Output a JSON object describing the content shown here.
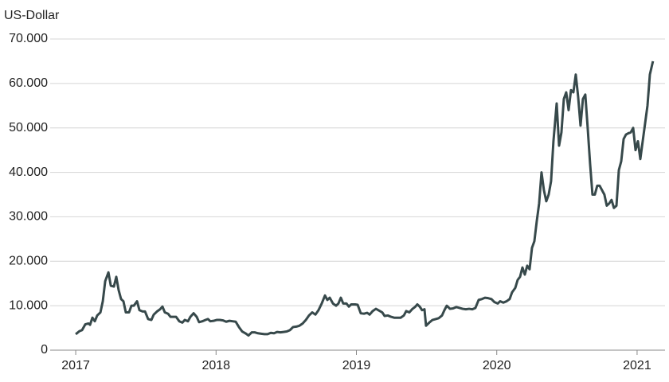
{
  "chart_data": {
    "type": "line",
    "y_axis_label": "US-Dollar",
    "xlim": [
      2016.818,
      2021.199
    ],
    "xticks": [
      2017,
      2018,
      2019,
      2020,
      2021
    ],
    "ylim": [
      0,
      70000
    ],
    "yticks": [
      0,
      {
        "value": 10000,
        "label": "10.000"
      },
      {
        "value": 20000,
        "label": "20.000"
      },
      {
        "value": 30000,
        "label": "30.000"
      },
      {
        "value": 40000,
        "label": "40.000"
      },
      {
        "value": 50000,
        "label": "50.000"
      },
      {
        "value": 60000,
        "label": "60.000"
      },
      {
        "value": 70000,
        "label": "70.000"
      }
    ],
    "grid": true,
    "series": [
      {
        "color": "#37494b",
        "x": [
          2017,
          2017.028,
          2017.045,
          2017.068,
          2017.091,
          2017.102,
          2017.119,
          2017.136,
          2017.153,
          2017.176,
          2017.193,
          2017.21,
          2017.233,
          2017.25,
          2017.272,
          2017.289,
          2017.306,
          2017.323,
          2017.34,
          2017.357,
          2017.38,
          2017.397,
          2017.414,
          2017.437,
          2017.454,
          2017.477,
          2017.494,
          2017.516,
          2017.539,
          2017.556,
          2017.579,
          2017.601,
          2017.618,
          2017.635,
          2017.658,
          2017.675,
          2017.698,
          2017.715,
          2017.738,
          2017.76,
          2017.777,
          2017.8,
          2017.817,
          2017.84,
          2017.862,
          2017.879,
          2017.902,
          2017.925,
          2017.942,
          2017.959,
          2017.982,
          2018.004,
          2018.027,
          2018.05,
          2018.072,
          2018.095,
          2018.118,
          2018.14,
          2018.163,
          2018.186,
          2018.209,
          2018.231,
          2018.254,
          2018.277,
          2018.299,
          2018.322,
          2018.345,
          2018.367,
          2018.39,
          2018.413,
          2018.435,
          2018.458,
          2018.481,
          2018.504,
          2018.526,
          2018.549,
          2018.572,
          2018.594,
          2018.617,
          2018.64,
          2018.662,
          2018.685,
          2018.708,
          2018.73,
          2018.753,
          2018.776,
          2018.793,
          2018.81,
          2018.833,
          2018.855,
          2018.872,
          2018.889,
          2018.906,
          2018.929,
          2018.946,
          2018.963,
          2018.991,
          2019.009,
          2019.031,
          2019.054,
          2019.077,
          2019.094,
          2019.116,
          2019.139,
          2019.162,
          2019.184,
          2019.201,
          2019.224,
          2019.247,
          2019.269,
          2019.292,
          2019.315,
          2019.338,
          2019.355,
          2019.377,
          2019.4,
          2019.417,
          2019.434,
          2019.451,
          2019.468,
          2019.485,
          2019.496,
          2019.519,
          2019.542,
          2019.565,
          2019.587,
          2019.61,
          2019.627,
          2019.644,
          2019.667,
          2019.689,
          2019.712,
          2019.735,
          2019.757,
          2019.78,
          2019.803,
          2019.826,
          2019.848,
          2019.871,
          2019.894,
          2019.916,
          2019.939,
          2019.962,
          2019.984,
          2020.007,
          2020.024,
          2020.047,
          2020.07,
          2020.092,
          2020.109,
          2020.132,
          2020.149,
          2020.166,
          2020.183,
          2020.2,
          2020.217,
          2020.234,
          2020.251,
          2020.268,
          2020.285,
          2020.302,
          2020.319,
          2020.336,
          2020.353,
          2020.37,
          2020.387,
          2020.404,
          2020.427,
          2020.444,
          2020.461,
          2020.478,
          2020.495,
          2020.512,
          2020.529,
          2020.546,
          2020.563,
          2020.58,
          2020.597,
          2020.614,
          2020.631,
          2020.648,
          2020.665,
          2020.682,
          2020.699,
          2020.716,
          2020.733,
          2020.75,
          2020.767,
          2020.784,
          2020.801,
          2020.818,
          2020.835,
          2020.853,
          2020.87,
          2020.887,
          2020.904,
          2020.921,
          2020.938,
          2020.955,
          2020.972,
          2020.989,
          2021.006,
          2021.023,
          2021.04,
          2021.057,
          2021.074,
          2021.091,
          2021.113
        ],
        "values": [
          3600,
          4300,
          4500,
          5800,
          6000,
          5700,
          7300,
          6500,
          7800,
          8500,
          11000,
          15500,
          17500,
          14500,
          14300,
          16500,
          13500,
          11500,
          11000,
          8500,
          8500,
          10000,
          10000,
          11000,
          9000,
          8700,
          8700,
          7000,
          6800,
          8000,
          8700,
          9200,
          9800,
          8500,
          8200,
          7500,
          7500,
          7500,
          6500,
          6200,
          6800,
          6500,
          7500,
          8300,
          7500,
          6300,
          6500,
          6800,
          7000,
          6500,
          6600,
          6800,
          6800,
          6700,
          6400,
          6600,
          6500,
          6400,
          5200,
          4200,
          3800,
          3300,
          4000,
          4000,
          3800,
          3700,
          3600,
          3600,
          3900,
          3800,
          4100,
          4000,
          4100,
          4200,
          4500,
          5200,
          5300,
          5500,
          6000,
          6800,
          7800,
          8500,
          8000,
          9000,
          10500,
          12300,
          11300,
          11800,
          10500,
          10000,
          10500,
          11800,
          10500,
          10500,
          9800,
          10300,
          10300,
          10200,
          8300,
          8200,
          8400,
          8000,
          8800,
          9300,
          8900,
          8500,
          7700,
          7800,
          7500,
          7300,
          7300,
          7300,
          7800,
          8800,
          8500,
          9300,
          9700,
          10300,
          9800,
          9000,
          9200,
          5500,
          6200,
          6800,
          7000,
          7200,
          7800,
          9000,
          10000,
          9300,
          9400,
          9700,
          9500,
          9300,
          9200,
          9300,
          9200,
          9500,
          11300,
          11500,
          11800,
          11700,
          11500,
          10800,
          10500,
          11000,
          10700,
          11000,
          11500,
          13000,
          14000,
          15800,
          16500,
          18600,
          17000,
          19000,
          18200,
          23000,
          24500,
          29000,
          33000,
          40000,
          36000,
          33500,
          35000,
          38000,
          47000,
          55500,
          46000,
          49000,
          56500,
          58000,
          54000,
          58500,
          58000,
          62000,
          57000,
          50500,
          56500,
          57500,
          50000,
          42000,
          35000,
          35000,
          37000,
          37000,
          36000,
          35000,
          32500,
          33000,
          33800,
          32000,
          32500,
          40500,
          42500,
          47500,
          48500,
          48800,
          49000,
          50000,
          45000,
          47000,
          43000,
          47000,
          51000,
          55000,
          62000,
          65000
        ]
      }
    ]
  }
}
